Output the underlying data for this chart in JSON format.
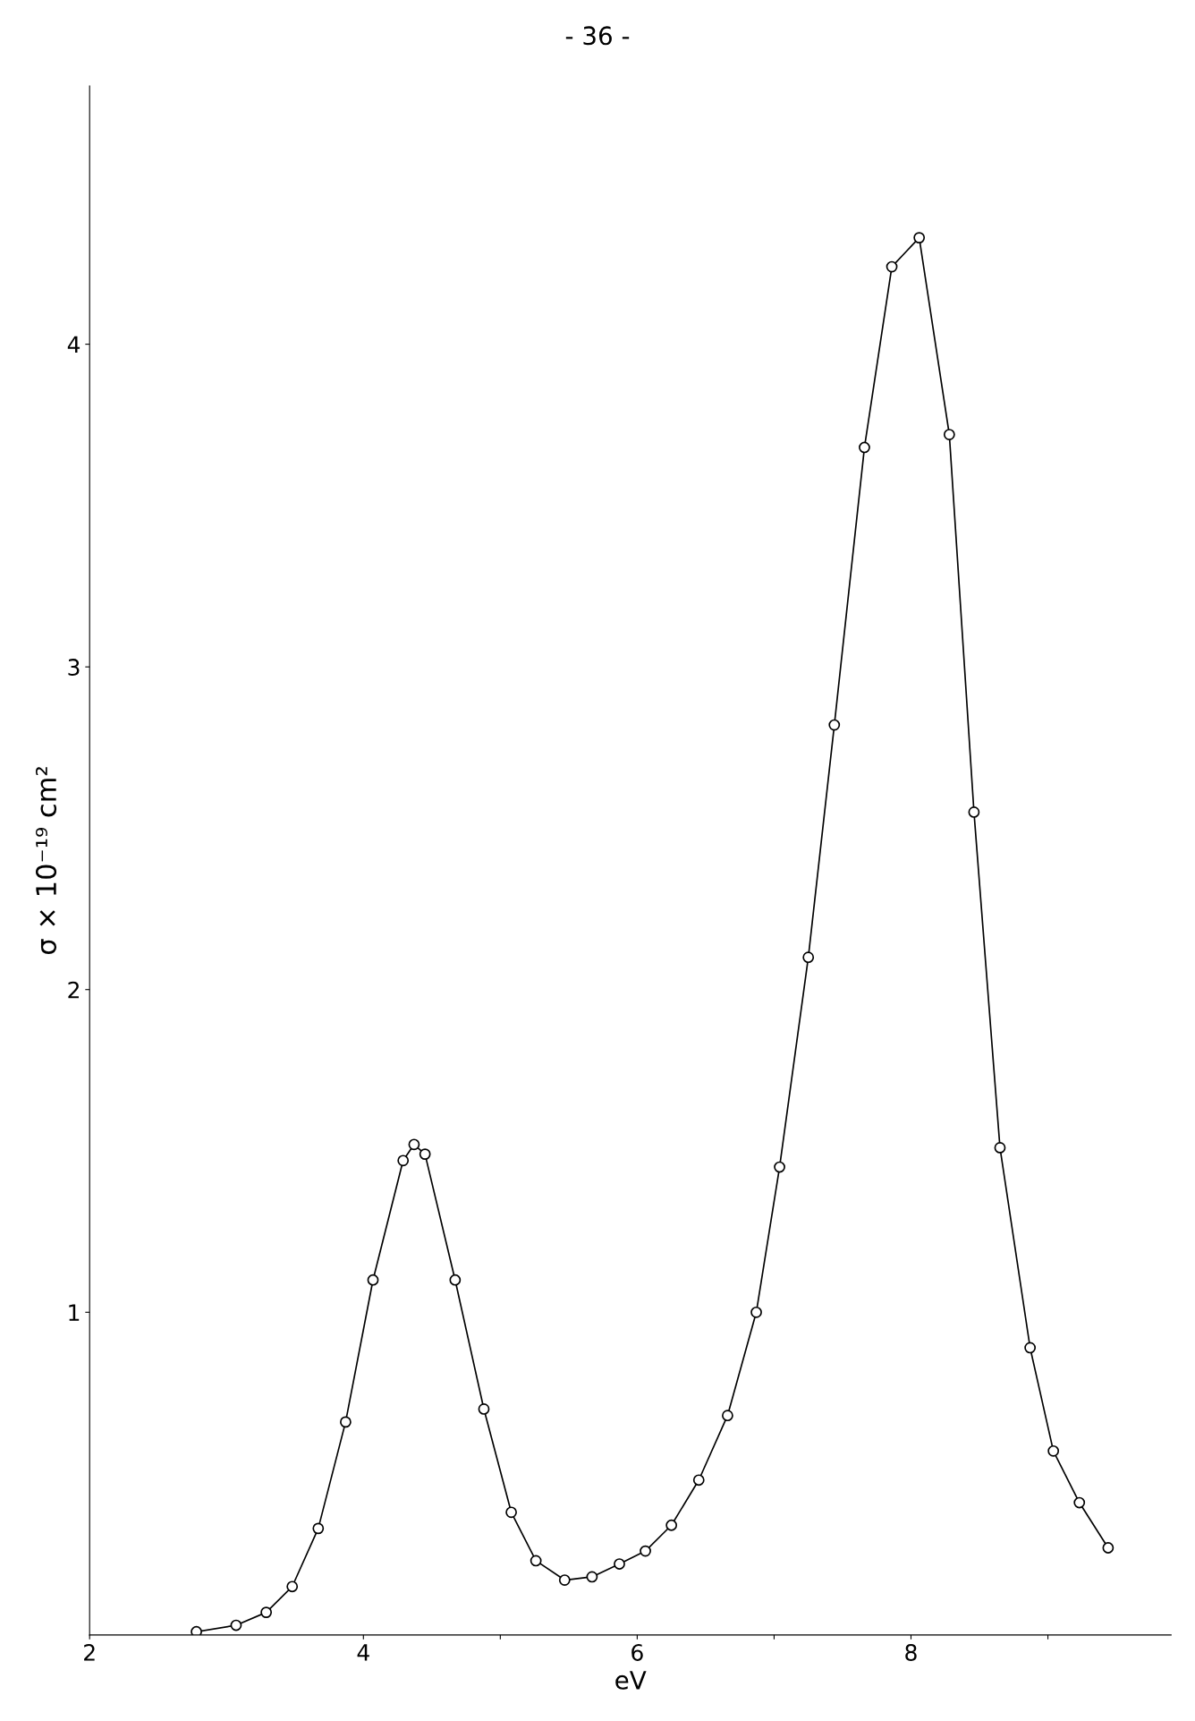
{
  "chart_data": {
    "type": "line",
    "xlabel": "eV",
    "ylabel": "σ × 10⁻¹⁹ cm²",
    "annotations": [
      "- 36 -"
    ],
    "xlim": [
      2,
      9.9
    ],
    "ylim": [
      0,
      4.8
    ],
    "xticks": [
      2,
      4,
      {
        "value": 5,
        "label": null
      },
      6,
      {
        "value": 7,
        "label": null
      },
      8,
      {
        "value": 9,
        "label": null
      }
    ],
    "yticks": [
      1,
      2,
      3,
      4
    ],
    "grid": false,
    "marker": "circle",
    "line_style": "solid",
    "series": [
      {
        "color": "#000000",
        "x": [
          2.78,
          3.07,
          3.29,
          3.48,
          3.67,
          3.87,
          4.07,
          4.29,
          4.37,
          4.45,
          4.67,
          4.88,
          5.08,
          5.26,
          5.47,
          5.67,
          5.87,
          6.06,
          6.25,
          6.45,
          6.66,
          6.87,
          7.04,
          7.25,
          7.44,
          7.66,
          7.86,
          8.06,
          8.28,
          8.46,
          8.65,
          8.87,
          9.04,
          9.23,
          9.44
        ],
        "values": [
          0.01,
          0.03,
          0.07,
          0.15,
          0.33,
          0.66,
          1.1,
          1.47,
          1.52,
          1.49,
          1.1,
          0.7,
          0.38,
          0.23,
          0.17,
          0.18,
          0.22,
          0.26,
          0.34,
          0.48,
          0.68,
          1.0,
          1.45,
          2.1,
          2.82,
          3.68,
          4.24,
          4.33,
          3.72,
          2.55,
          1.51,
          0.89,
          0.57,
          0.41,
          0.27
        ]
      }
    ]
  }
}
